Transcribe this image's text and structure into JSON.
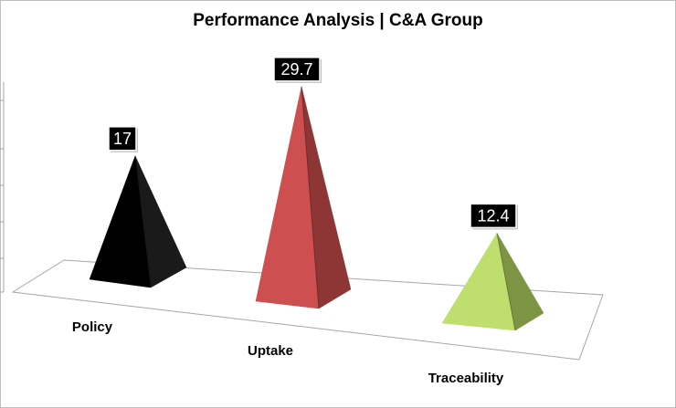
{
  "chart_data": {
    "type": "bar",
    "bar_shape": "pyramid",
    "title": "Performance Analysis | C&A Group",
    "categories": [
      "Policy",
      "Uptake",
      "Traceability"
    ],
    "values": [
      17,
      29.7,
      12.4
    ],
    "data_labels": [
      "17",
      "29.7",
      "12.4"
    ],
    "colors": [
      "#000000",
      "#cd4f4f",
      "#bede6e"
    ],
    "side_colors": [
      "#1a1a1a",
      "#8e3535",
      "#7d9444"
    ],
    "xlabel": "",
    "ylabel": "",
    "ylim": [
      0,
      30
    ],
    "grid": false,
    "legend": "none",
    "view": "3d"
  }
}
